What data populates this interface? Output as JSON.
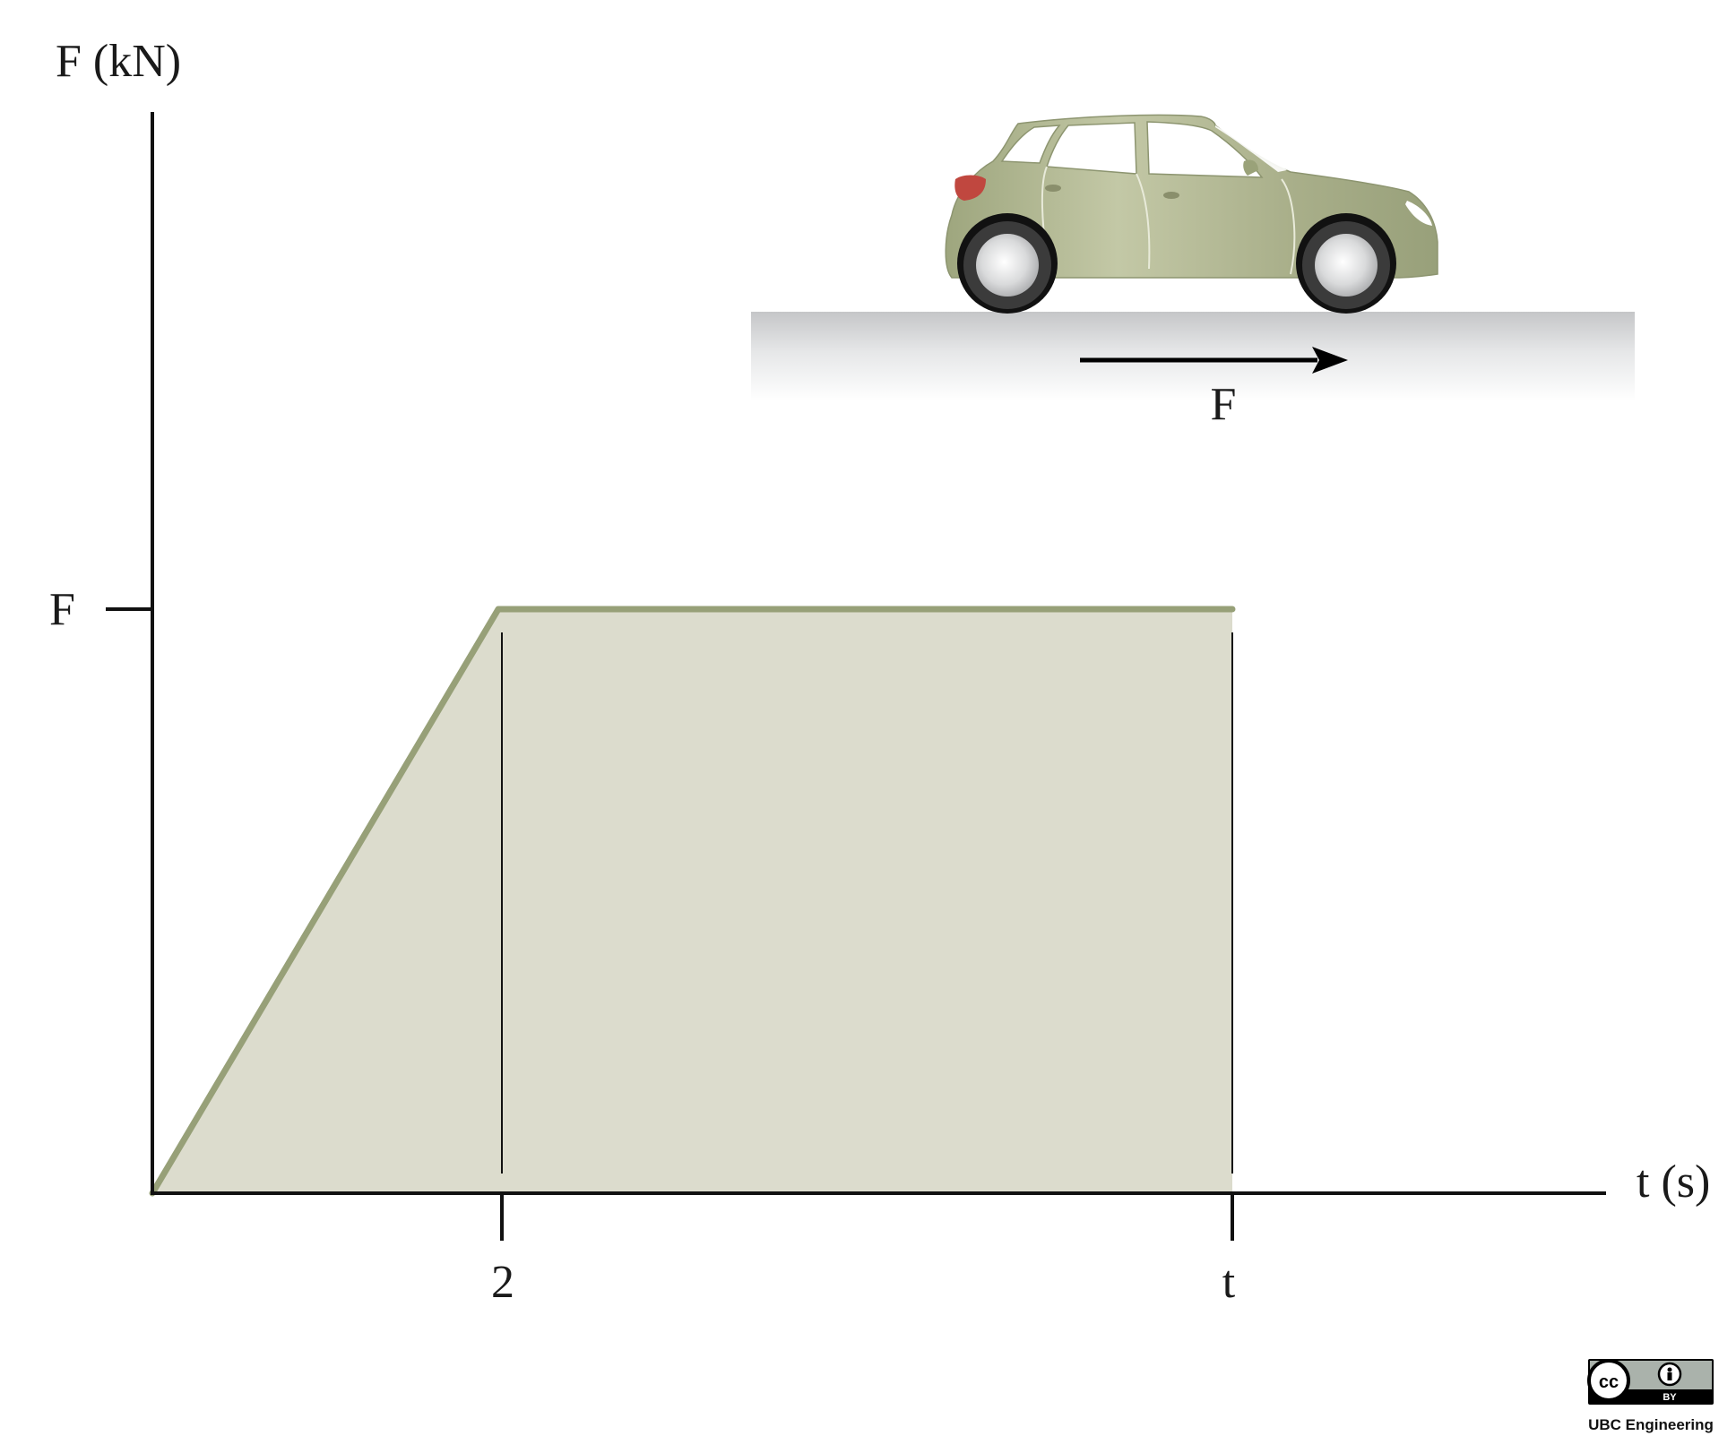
{
  "diagram": {
    "y_axis_label": "F (kN)",
    "x_axis_label": "t (s)",
    "y_tick_label": "F",
    "x_tick_labels": [
      "2",
      "t"
    ],
    "force_label": "F",
    "profile": "linear ramp from 0 to F over 0–2 s, then constant F until t",
    "colors": {
      "curve": "#97a078",
      "fill": "#dcdccd",
      "axis": "#111111",
      "car_body": "#a3aa84",
      "ground": "#c9cacc",
      "tail_light": "#c0473f"
    }
  },
  "license": {
    "badge_text": "BY",
    "credit": "UBC Engineering"
  }
}
